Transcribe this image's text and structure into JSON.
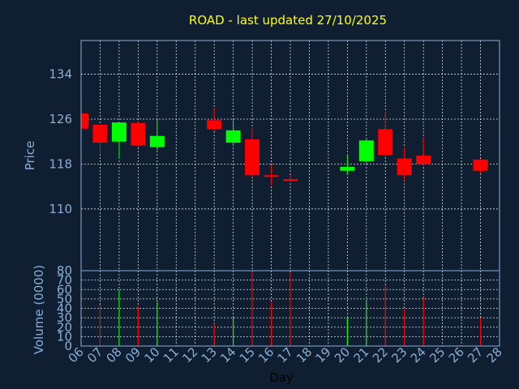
{
  "chart_data": {
    "type": "candlestick",
    "title": "ROAD - last updated 27/10/2025",
    "xlabel": "Day",
    "price_panel": {
      "ylabel": "Price",
      "ylim": [
        99,
        140
      ],
      "yticks": [
        110,
        118,
        126,
        134
      ],
      "grid": true
    },
    "volume_panel": {
      "ylabel": "Volume (0000)",
      "ylim": [
        0,
        80
      ],
      "yticks": [
        0,
        10,
        20,
        30,
        40,
        50,
        60,
        70,
        80
      ],
      "grid": true
    },
    "x_ticks": [
      "06",
      "07",
      "08",
      "09",
      "10",
      "11",
      "12",
      "13",
      "14",
      "15",
      "16",
      "17",
      "18",
      "19",
      "20",
      "21",
      "22",
      "23",
      "24",
      "25",
      "26",
      "27",
      "28"
    ],
    "colors": {
      "up": "#00ff00",
      "down": "#ff0000",
      "background": "#0f1e30",
      "grid": "#ffffff",
      "axis_text": "#8aaed6",
      "title": "#ffff00"
    },
    "candles": [
      {
        "day": "06",
        "open": 127.0,
        "high": 127.0,
        "low": 124.0,
        "close": 124.3,
        "volume": 0
      },
      {
        "day": "07",
        "open": 125.0,
        "high": 125.0,
        "low": 120.0,
        "close": 121.8,
        "volume": 44
      },
      {
        "day": "08",
        "open": 122.0,
        "high": 125.5,
        "low": 119.0,
        "close": 125.4,
        "volume": 60
      },
      {
        "day": "09",
        "open": 125.3,
        "high": 125.5,
        "low": 121.0,
        "close": 121.3,
        "volume": 42
      },
      {
        "day": "10",
        "open": 121.0,
        "high": 126.0,
        "low": 120.5,
        "close": 123.0,
        "volume": 47
      },
      {
        "day": "13",
        "open": 125.8,
        "high": 128.0,
        "low": 123.9,
        "close": 124.2,
        "volume": 24
      },
      {
        "day": "14",
        "open": 121.8,
        "high": 125.8,
        "low": 121.3,
        "close": 124.0,
        "volume": 30
      },
      {
        "day": "15",
        "open": 122.4,
        "high": 124.5,
        "low": 115.6,
        "close": 116.0,
        "volume": 79
      },
      {
        "day": "16",
        "open": 116.0,
        "high": 117.8,
        "low": 114.2,
        "close": 115.8,
        "volume": 47
      },
      {
        "day": "17",
        "open": 115.3,
        "high": 116.0,
        "low": 115.0,
        "close": 115.0,
        "volume": 78
      },
      {
        "day": "20",
        "open": 116.8,
        "high": 119.5,
        "low": 116.1,
        "close": 117.5,
        "volume": 30
      },
      {
        "day": "21",
        "open": 118.5,
        "high": 122.5,
        "low": 117.8,
        "close": 122.2,
        "volume": 48
      },
      {
        "day": "22",
        "open": 124.2,
        "high": 127.3,
        "low": 119.3,
        "close": 119.6,
        "volume": 64
      },
      {
        "day": "23",
        "open": 119.0,
        "high": 121.0,
        "low": 115.0,
        "close": 116.0,
        "volume": 39
      },
      {
        "day": "24",
        "open": 119.5,
        "high": 122.8,
        "low": 117.8,
        "close": 118.0,
        "volume": 51
      },
      {
        "day": "27",
        "open": 118.8,
        "high": 118.9,
        "low": 116.3,
        "close": 116.8,
        "volume": 30
      }
    ]
  }
}
